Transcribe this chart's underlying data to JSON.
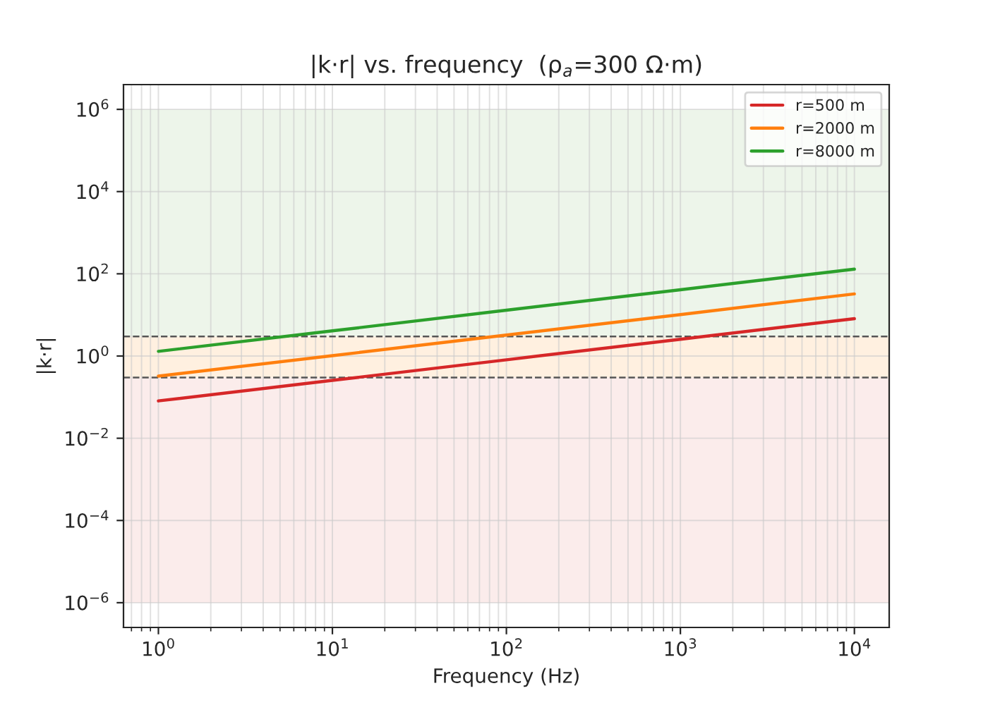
{
  "chart_data": {
    "type": "line",
    "title": "|k·r| vs. frequency  (ρ$_{a}$=300 Ω·m)",
    "xlabel": "Frequency (Hz)",
    "ylabel": "|k·r|",
    "x": [
      1,
      10,
      100,
      1000,
      10000
    ],
    "series": [
      {
        "name": "r=500 m",
        "color": "#d62728",
        "values": [
          0.081,
          0.256,
          0.81,
          2.56,
          8.1
        ]
      },
      {
        "name": "r=2000 m",
        "color": "#ff7f0e",
        "values": [
          0.324,
          1.02,
          3.24,
          10.2,
          32.4
        ]
      },
      {
        "name": "r=8000 m",
        "color": "#2ca02c",
        "values": [
          1.3,
          4.1,
          13,
          41,
          130
        ]
      }
    ],
    "log": "xy",
    "xlim": [
      0.63,
      15850
    ],
    "ylim": [
      2.5e-07,
      4000000.0
    ],
    "xticks": [
      {
        "value": 1,
        "label": "10$^{0}$"
      },
      {
        "value": 10,
        "label": "10$^{1}$"
      },
      {
        "value": 100,
        "label": "10$^{2}$"
      },
      {
        "value": 1000,
        "label": "10$^{3}$"
      },
      {
        "value": 10000,
        "label": "10$^{4}$"
      }
    ],
    "yticks": [
      {
        "value": 1e-06,
        "label": "10$^{−6}$"
      },
      {
        "value": 0.0001,
        "label": "10$^{−4}$"
      },
      {
        "value": 0.01,
        "label": "10$^{−2}$"
      },
      {
        "value": 1,
        "label": "10$^{0}$"
      },
      {
        "value": 100,
        "label": "10$^{2}$"
      },
      {
        "value": 10000,
        "label": "10$^{4}$"
      },
      {
        "value": 1000000,
        "label": "10$^{6}$"
      }
    ],
    "bands": [
      {
        "axis": "y",
        "from": 1e-06,
        "to": 0.3,
        "color": "#fbeceb"
      },
      {
        "axis": "y",
        "from": 0.3,
        "to": 3,
        "color": "#fff0e0"
      },
      {
        "axis": "y",
        "from": 3,
        "to": 1000000,
        "color": "#edf5ea"
      }
    ],
    "ref_lines": [
      {
        "axis": "y",
        "value": 0.3,
        "color": "#555555",
        "line_style": "dashed"
      },
      {
        "axis": "y",
        "value": 3,
        "color": "#555555",
        "line_style": "dashed"
      }
    ],
    "grid": true,
    "legend": "top right",
    "marker": "none",
    "line_style": "solid"
  }
}
